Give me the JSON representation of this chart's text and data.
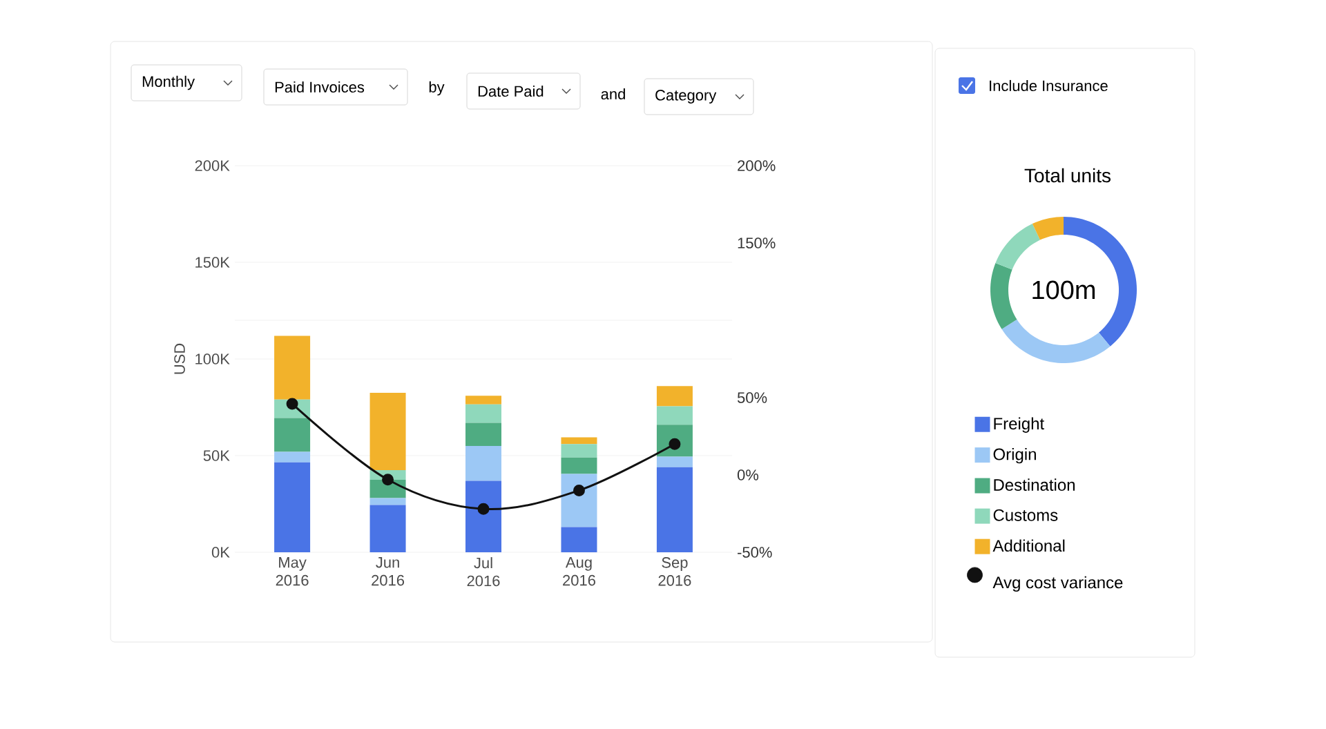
{
  "chart_data": [
    {
      "type": "bar",
      "stacked": true,
      "ylabel": "USD",
      "categories": [
        "May 2016",
        "Jun 2016",
        "Jul 2016",
        "Aug 2016",
        "Sep 2016"
      ],
      "series": [
        {
          "name": "Freight",
          "color": "#4a74e6",
          "values": [
            46.5,
            24.5,
            37,
            13,
            44
          ]
        },
        {
          "name": "Origin",
          "color": "#9cc8f5",
          "values": [
            5.5,
            3.5,
            18,
            27.5,
            5.5
          ]
        },
        {
          "name": "Destination",
          "color": "#4fac82",
          "values": [
            17.5,
            9.5,
            12,
            8.5,
            16.5
          ]
        },
        {
          "name": "Customs",
          "color": "#8fd8bb",
          "values": [
            9.5,
            5,
            9.5,
            7,
            9.5
          ]
        },
        {
          "name": "Additional",
          "color": "#f2b22b",
          "values": [
            33,
            40,
            4.5,
            3.5,
            10.5
          ]
        },
        {
          "name": "Avg cost variance",
          "color": "#111111",
          "type": "line",
          "axis": "y2",
          "marker": "circle",
          "values": [
            46,
            -3,
            -22,
            -10,
            20
          ]
        }
      ],
      "ylim": [
        0,
        200
      ],
      "yticks": [
        {
          "value": 0,
          "label": "0K"
        },
        {
          "value": 50,
          "label": "50K"
        },
        {
          "value": 100,
          "label": "100K"
        },
        {
          "value": 150,
          "label": "150K"
        },
        {
          "value": 200,
          "label": "200K"
        }
      ],
      "y2lim": [
        -50,
        200
      ],
      "y2ticks": [
        {
          "value": -50,
          "label": "-50%"
        },
        {
          "value": 0,
          "label": "0%"
        },
        {
          "value": 50,
          "label": "50%"
        },
        {
          "value": 100,
          "label": null
        },
        {
          "value": 150,
          "label": "150%"
        },
        {
          "value": 200,
          "label": "200%"
        }
      ],
      "grid": "y",
      "legend": "right",
      "annotations": [
        "Monthly",
        "Paid Invoices",
        "by",
        "Date Paid",
        "and",
        "Category"
      ]
    },
    {
      "type": "donut",
      "title": "Total units",
      "categories": [
        null,
        null,
        null,
        null,
        null
      ],
      "values": [
        39,
        27,
        15,
        12,
        7
      ],
      "colors": [
        "#4a74e6",
        "#9cc8f5",
        "#4fac82",
        "#8fd8bb",
        "#f2b22b"
      ],
      "annotations": [
        "100m",
        "Include Insurance"
      ]
    }
  ]
}
